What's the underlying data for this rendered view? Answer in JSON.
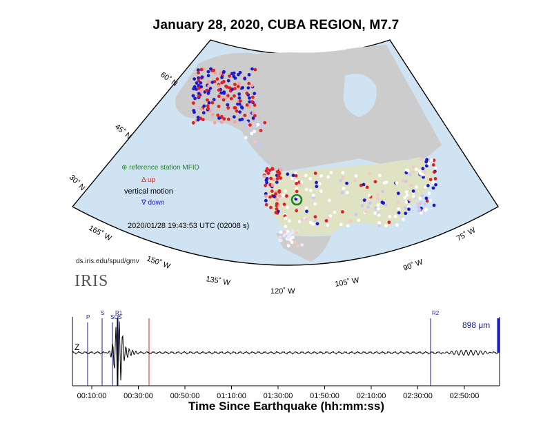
{
  "title": "January 28, 2020, CUBA REGION, M7.7",
  "map": {
    "ocean_color": "#cfe3f2",
    "land_color": "#cccccc",
    "us_land_color": "#e0e2c4",
    "lat_labels": [
      "60˚ N",
      "45˚ N",
      "30˚ N"
    ],
    "lon_labels": [
      "165˚ W",
      "150˚ W",
      "135˚ W",
      "120˚ W",
      "105˚ W",
      "90˚ W",
      "75˚ W"
    ],
    "timestamp": "2020/01/28 19:43:53 UTC (02008 s)",
    "credit": "ds.iris.edu/spud/gmv",
    "logo": "IRIS"
  },
  "legend": {
    "reference": "⊕ reference station MFID",
    "up": "Δ up",
    "vertical": "vertical motion",
    "down": "∇ down",
    "reference_color": "#1a8a1a",
    "up_color": "#e02020",
    "down_color": "#1a1acc"
  },
  "seismogram": {
    "channel": "Z",
    "amplitude": "898 μm",
    "phases": [
      "P",
      "S",
      "SCS",
      "R1",
      "R2"
    ],
    "current_marker_color": "#cc2222",
    "phase_color": "#1a1a99",
    "tick_labels": [
      "00:10:00",
      "00:30:00",
      "00:50:00",
      "01:10:00",
      "01:30:00",
      "01:50:00",
      "02:10:00",
      "02:30:00",
      "02:50:00"
    ],
    "xlabel": "Time Since Earthquake (hh:mm:ss)"
  }
}
